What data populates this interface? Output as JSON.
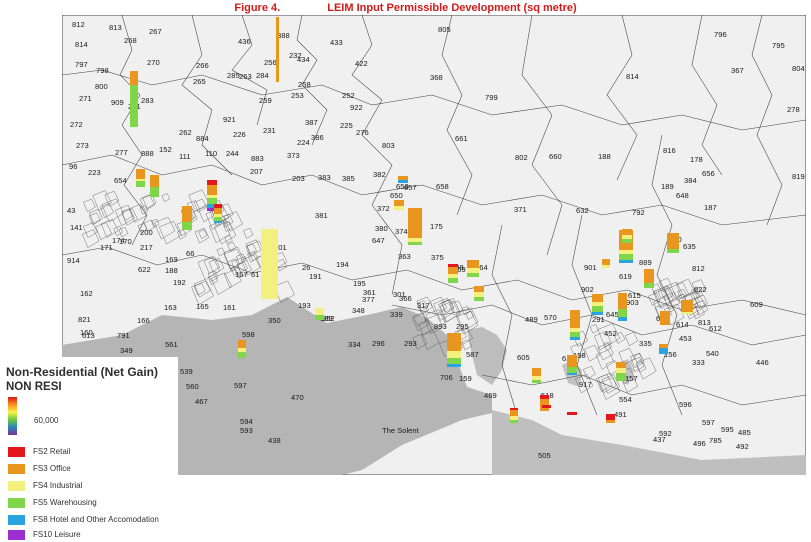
{
  "figure": {
    "number": "Figure 4.",
    "title": "LEIM Input Permissible Development (sq metre)"
  },
  "legend": {
    "heading": "Non-Residential (Net Gain)",
    "subheading": "NON RESI",
    "scale_label": "60,000",
    "items": [
      {
        "label": "FS2 Retail",
        "color": "#e3161c"
      },
      {
        "label": "FS3 Office",
        "color": "#e8961e"
      },
      {
        "label": "FS4 Industrial",
        "color": "#f4f080"
      },
      {
        "label": "FS5 Warehousing",
        "color": "#80d64a"
      },
      {
        "label": "FS8 Hotel and Other Accomodation",
        "color": "#2aa4e0"
      },
      {
        "label": "FS10 Leisure",
        "color": "#9b2fd0"
      }
    ]
  },
  "map": {
    "sea_label": "The Solent",
    "zone_labels": [
      "812",
      "813",
      "267",
      "436",
      "388",
      "433",
      "805",
      "796",
      "814",
      "268",
      "270",
      "266",
      "256",
      "232",
      "434",
      "422",
      "795",
      "797",
      "798",
      "285",
      "284",
      "258",
      "252",
      "368",
      "367",
      "804",
      "800",
      "283",
      "265",
      "263",
      "253",
      "259",
      "922",
      "814",
      "271",
      "909",
      "261",
      "921",
      "387",
      "799",
      "278",
      "272",
      "262",
      "884",
      "226",
      "225",
      "276",
      "277",
      "888",
      "231",
      "224",
      "386",
      "661",
      "816",
      "273",
      "152",
      "111",
      "110",
      "244",
      "883",
      "373",
      "803",
      "802",
      "660",
      "188",
      "178",
      "96",
      "223",
      "207",
      "203",
      "383",
      "385",
      "382",
      "657",
      "658",
      "659",
      "189",
      "384",
      "656",
      "654",
      "650",
      "648",
      "187",
      "43",
      "381",
      "372",
      "371",
      "632",
      "792",
      "819",
      "141",
      "200",
      "380",
      "374",
      "175",
      "174",
      "171",
      "170",
      "217",
      "201",
      "647",
      "820",
      "914",
      "169",
      "66",
      "363",
      "375",
      "889",
      "635",
      "622",
      "188",
      "167",
      "61",
      "26",
      "194",
      "198",
      "364",
      "901",
      "619",
      "812",
      "162",
      "192",
      "191",
      "195",
      "361",
      "377",
      "301",
      "369",
      "902",
      "615",
      "822",
      "821",
      "166",
      "163",
      "193",
      "189",
      "366",
      "317",
      "903",
      "609",
      "160",
      "165",
      "161",
      "350",
      "352",
      "348",
      "339",
      "893",
      "295",
      "291",
      "489",
      "570",
      "645",
      "646",
      "614",
      "813",
      "612",
      "613",
      "791",
      "349",
      "334",
      "296",
      "293",
      "586",
      "587",
      "611",
      "158",
      "335",
      "453",
      "452",
      "540",
      "561",
      "598",
      "605",
      "706",
      "159",
      "917",
      "157",
      "156",
      "333",
      "446",
      "539",
      "560",
      "597",
      "467",
      "470",
      "469",
      "518",
      "554",
      "596",
      "594",
      "593",
      "438",
      "491",
      "592",
      "597",
      "595",
      "485",
      "505",
      "496",
      "492",
      "437",
      "785"
    ]
  }
}
